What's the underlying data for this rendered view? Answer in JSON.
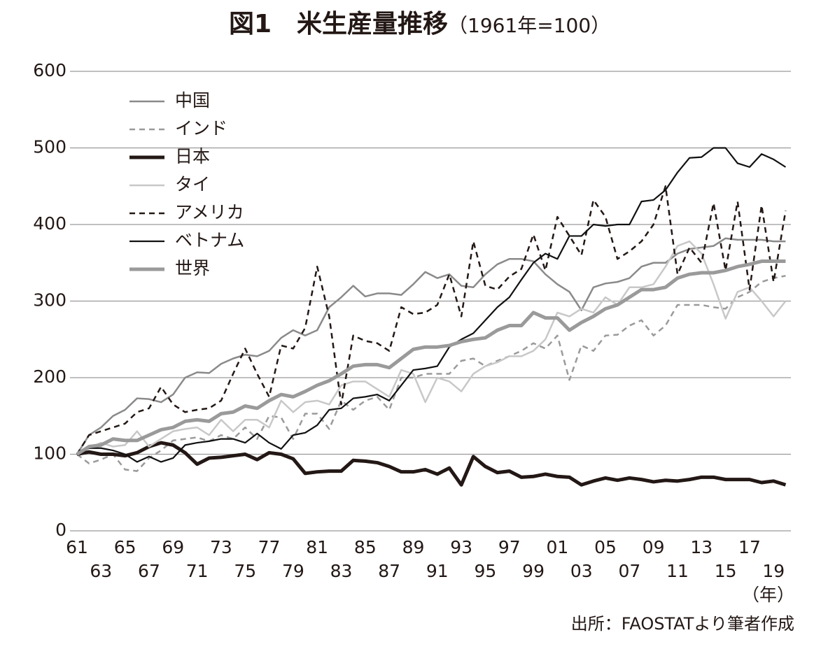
{
  "chart_data": {
    "type": "line",
    "title": "図1　米生産量推移",
    "subtitle": "（1961年=100）",
    "x_unit": "（年）",
    "source": "出所：FAOSTATより筆者作成",
    "categories": [
      "61",
      null,
      "63",
      null,
      "65",
      null,
      "67",
      null,
      "69",
      null,
      "71",
      null,
      "73",
      null,
      "75",
      null,
      "77",
      null,
      "79",
      null,
      "81",
      null,
      "83",
      null,
      "85",
      null,
      "87",
      null,
      "89",
      null,
      "91",
      null,
      "93",
      null,
      "95",
      null,
      "97",
      null,
      "99",
      null,
      "01",
      null,
      "03",
      null,
      "05",
      null,
      "07",
      null,
      "09",
      null,
      "11",
      null,
      "13",
      null,
      "15",
      null,
      "17",
      null,
      "19",
      null
    ],
    "ylim": [
      0,
      600
    ],
    "yticks": [
      0,
      100,
      200,
      300,
      400,
      500,
      600
    ],
    "grid": true,
    "legend": "upper left",
    "series": [
      {
        "name": "中国",
        "color": "#8a8a8a",
        "width": 2.5,
        "dash": "none",
        "values": [
          100,
          125,
          135,
          150,
          158,
          173,
          172,
          168,
          178,
          200,
          207,
          206,
          218,
          225,
          230,
          228,
          235,
          252,
          262,
          255,
          262,
          292,
          305,
          320,
          306,
          310,
          310,
          308,
          322,
          338,
          330,
          335,
          320,
          318,
          335,
          348,
          355,
          355,
          352,
          335,
          322,
          312,
          288,
          318,
          323,
          325,
          330,
          345,
          350,
          350,
          362,
          368,
          370,
          372,
          382,
          380,
          380,
          380,
          378,
          378
        ]
      },
      {
        "name": "インド",
        "color": "#9a9a9a",
        "width": 2.5,
        "dash": "8 6",
        "values": [
          100,
          88,
          93,
          100,
          80,
          78,
          95,
          105,
          118,
          120,
          122,
          117,
          125,
          120,
          135,
          120,
          150,
          148,
          120,
          153,
          153,
          133,
          170,
          158,
          170,
          175,
          158,
          200,
          200,
          205,
          205,
          205,
          222,
          225,
          215,
          222,
          228,
          235,
          245,
          238,
          255,
          197,
          242,
          235,
          255,
          256,
          268,
          275,
          255,
          268,
          295,
          295,
          295,
          292,
          290,
          305,
          312,
          325,
          330,
          333
        ]
      },
      {
        "name": "日本",
        "color": "#231815",
        "width": 5,
        "dash": "none",
        "values": [
          100,
          103,
          100,
          100,
          98,
          102,
          110,
          115,
          112,
          102,
          87,
          95,
          96,
          98,
          100,
          93,
          102,
          100,
          94,
          75,
          77,
          78,
          78,
          92,
          91,
          89,
          84,
          77,
          77,
          80,
          74,
          82,
          60,
          97,
          84,
          76,
          78,
          70,
          71,
          74,
          71,
          70,
          60,
          65,
          69,
          66,
          69,
          67,
          64,
          66,
          65,
          67,
          70,
          70,
          67,
          67,
          67,
          63,
          65,
          60
        ]
      },
      {
        "name": "タイ",
        "color": "#c8c8c8",
        "width": 2.5,
        "dash": "none",
        "values": [
          100,
          108,
          115,
          110,
          112,
          130,
          110,
          120,
          130,
          133,
          135,
          125,
          145,
          130,
          145,
          145,
          135,
          170,
          155,
          168,
          170,
          165,
          190,
          195,
          195,
          185,
          175,
          210,
          205,
          168,
          200,
          195,
          182,
          205,
          215,
          220,
          228,
          228,
          235,
          250,
          285,
          280,
          290,
          285,
          305,
          295,
          318,
          318,
          322,
          345,
          372,
          378,
          362,
          322,
          277,
          312,
          318,
          300,
          280,
          300
        ]
      },
      {
        "name": "アメリカ",
        "color": "#231815",
        "width": 2.5,
        "dash": "8 6",
        "values": [
          100,
          125,
          130,
          135,
          140,
          155,
          160,
          188,
          165,
          155,
          158,
          160,
          170,
          205,
          238,
          205,
          175,
          242,
          238,
          265,
          345,
          280,
          165,
          255,
          248,
          245,
          235,
          292,
          283,
          285,
          295,
          335,
          280,
          378,
          320,
          315,
          332,
          342,
          387,
          340,
          410,
          385,
          360,
          432,
          410,
          355,
          365,
          378,
          400,
          450,
          335,
          370,
          350,
          428,
          340,
          430,
          315,
          425,
          325,
          418
        ]
      },
      {
        "name": "ベトナム",
        "color": "#111111",
        "width": 2.2,
        "dash": "none",
        "values": [
          100,
          108,
          108,
          105,
          100,
          90,
          97,
          90,
          95,
          112,
          115,
          117,
          120,
          120,
          115,
          127,
          115,
          107,
          125,
          128,
          138,
          158,
          160,
          173,
          175,
          178,
          170,
          190,
          210,
          212,
          215,
          240,
          250,
          258,
          275,
          292,
          305,
          328,
          350,
          362,
          355,
          385,
          385,
          400,
          398,
          400,
          400,
          430,
          432,
          445,
          468,
          487,
          488,
          500,
          500,
          480,
          475,
          492,
          485,
          475
        ]
      },
      {
        "name": "世界",
        "color": "#9a9a9a",
        "width": 5,
        "dash": "none",
        "values": [
          100,
          110,
          112,
          120,
          118,
          118,
          125,
          132,
          135,
          143,
          145,
          143,
          153,
          155,
          163,
          160,
          170,
          178,
          175,
          182,
          190,
          196,
          205,
          215,
          217,
          217,
          213,
          225,
          237,
          240,
          240,
          242,
          247,
          250,
          252,
          262,
          268,
          268,
          285,
          278,
          278,
          262,
          272,
          280,
          290,
          295,
          305,
          315,
          315,
          318,
          330,
          335,
          337,
          337,
          340,
          345,
          348,
          352,
          352,
          352
        ]
      }
    ]
  }
}
